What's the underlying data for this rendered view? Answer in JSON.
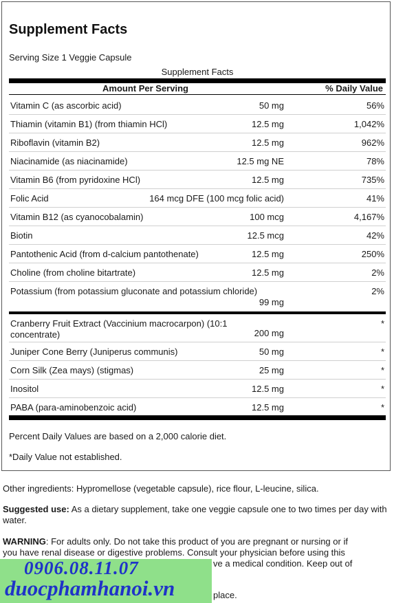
{
  "title": "Supplement Facts",
  "serving_size": "Serving Size 1 Veggie Capsule",
  "table_caption": "Supplement Facts",
  "header": {
    "amount": "Amount Per Serving",
    "dv": "% Daily Value"
  },
  "rows_a": [
    {
      "name": "Vitamin C (as ascorbic acid)",
      "amount": "50 mg",
      "dv": "56%"
    },
    {
      "name": "Thiamin (vitamin B1) (from thiamin HCl)",
      "amount": "12.5 mg",
      "dv": "1,042%"
    },
    {
      "name": "Riboflavin (vitamin B2)",
      "amount": "12.5 mg",
      "dv": "962%"
    },
    {
      "name": "Niacinamide (as niacinamide)",
      "amount": "12.5 mg NE",
      "dv": "78%"
    },
    {
      "name": "Vitamin B6 (from pyridoxine HCl)",
      "amount": "12.5 mg",
      "dv": "735%"
    },
    {
      "name": "Folic Acid",
      "amount": "164 mcg DFE (100 mcg folic acid)",
      "dv": "41%"
    },
    {
      "name": "Vitamin B12 (as cyanocobalamin)",
      "amount": "100 mcg",
      "dv": "4,167%"
    },
    {
      "name": "Biotin",
      "amount": "12.5 mcg",
      "dv": "42%"
    },
    {
      "name": "Pantothenic Acid (from d-calcium pantothenate)",
      "amount": "12.5 mg",
      "dv": "250%"
    },
    {
      "name": "Choline (from choline bitartrate)",
      "amount": "12.5 mg",
      "dv": "2%"
    },
    {
      "name": "Potassium (from potassium gluconate and potassium chloride)",
      "amount": "99 mg",
      "dv": "2%"
    }
  ],
  "rows_b": [
    {
      "name": "Cranberry Fruit Extract (Vaccinium macrocarpon) (10:1 concentrate)",
      "amount": "200 mg",
      "dv": "*"
    },
    {
      "name": "Juniper Cone Berry (Juniperus communis)",
      "amount": "50 mg",
      "dv": "*"
    },
    {
      "name": "Corn Silk (Zea mays) (stigmas)",
      "amount": "25 mg",
      "dv": "*"
    },
    {
      "name": "Inositol",
      "amount": "12.5 mg",
      "dv": "*"
    },
    {
      "name": "PABA (para-aminobenzoic acid)",
      "amount": "12.5 mg",
      "dv": "*"
    }
  ],
  "footnote_dv": "Percent Daily Values are based on a 2,000 calorie diet.",
  "footnote_star": "*Daily Value not established.",
  "other_ingredients": "Other ingredients: Hypromellose (vegetable capsule), rice flour, L-leucine, silica.",
  "suggested_use": {
    "label": "Suggested use:",
    "text": " As a dietary supplement, take one veggie capsule one to two times per day with water."
  },
  "warning": {
    "label": "WARNING",
    "line1": ": For adults only. Do not take this product of you are pregnant or nursing or if",
    "line2": "you have renal disease or digestive problems. Consult your physician before using this",
    "line3_visible": "ve a medical condition. Keep out of",
    "line4_visible": "place."
  },
  "watermark": {
    "phone": "0906.08.11.07",
    "site": "duocphamhanoi.vn",
    "color": "#1f33c8",
    "bg": "#8fe08a"
  }
}
